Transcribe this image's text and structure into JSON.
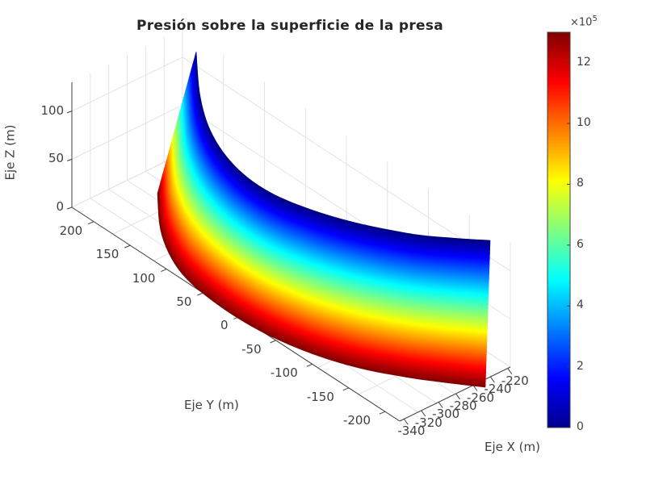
{
  "chart_data": {
    "type": "surface3d",
    "title": "Presión sobre la superficie de la presa",
    "xlabel": "Eje X (m)",
    "ylabel": "Eje Y (m)",
    "zlabel": "Eje Z (m)",
    "x_ticks": [
      "-340",
      "-320",
      "-300",
      "-280",
      "-260",
      "-240",
      "-220"
    ],
    "y_ticks": [
      "200",
      "150",
      "100",
      "50",
      "0",
      "-50",
      "-100",
      "-150",
      "-200"
    ],
    "z_ticks": [
      "0",
      "50",
      "100"
    ],
    "xlim": [
      -340,
      -220
    ],
    "ylim": [
      -220,
      230
    ],
    "zlim": [
      0,
      130
    ],
    "colorbar": {
      "colormap": "jet",
      "ticks": [
        "0",
        "2",
        "4",
        "6",
        "8",
        "10",
        "12"
      ],
      "multiplier": "×10",
      "multiplier_exponent": "5",
      "range": [
        0,
        13
      ]
    },
    "surface": {
      "description": "Curved dam face; pressure increases with depth from 0 (top, dark blue) to ~1.3e6 (bottom, dark red)",
      "pressure_min": 0,
      "pressure_max": 1300000
    },
    "grid": true,
    "colorbar_position": "right"
  }
}
